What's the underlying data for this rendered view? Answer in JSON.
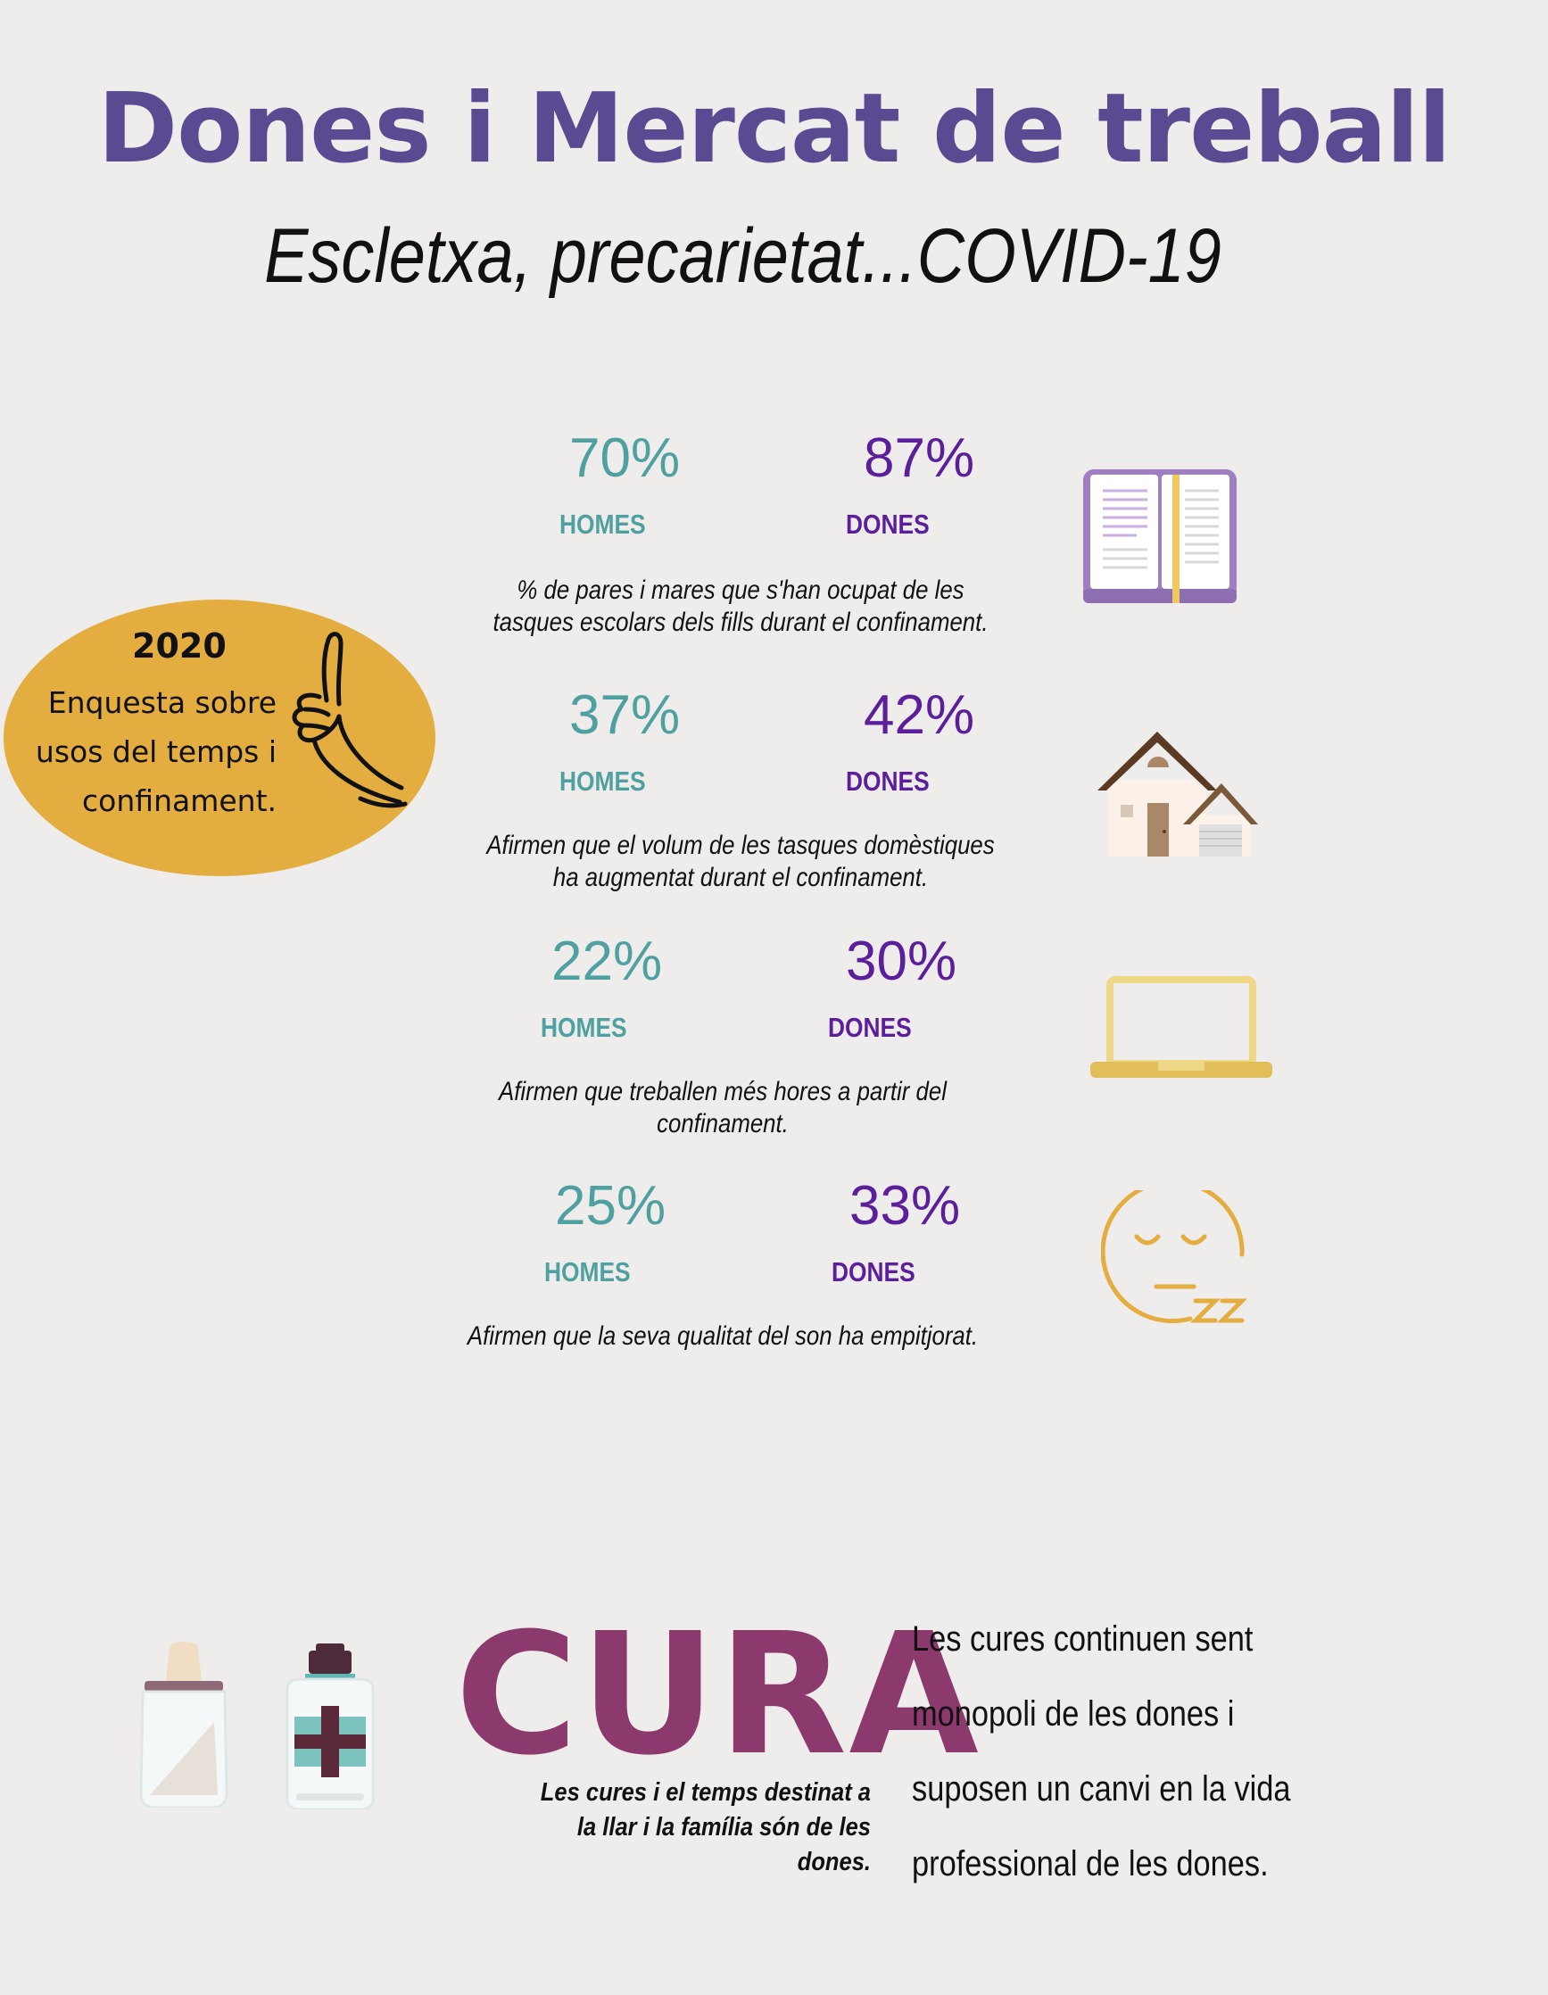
{
  "header": {
    "title": "Dones i Mercat de treball",
    "subtitle": "Escletxa, precarietat...COVID-19"
  },
  "survey_badge": {
    "year": "2020",
    "text": "Enquesta sobre usos del temps i confinament.",
    "line1": "Enquesta sobre",
    "line2": "usos del temps i",
    "line3": "confinament."
  },
  "stats": [
    {
      "homes_value": "70%",
      "homes_label": "HOMES",
      "dones_value": "87%",
      "dones_label": "DONES",
      "desc_line1": "% de pares i mares que s'han ocupat de les",
      "desc_line2": "tasques escolars dels fills durant el confinament.",
      "icon": "book-icon"
    },
    {
      "homes_value": "37%",
      "homes_label": "HOMES",
      "dones_value": "42%",
      "dones_label": "DONES",
      "desc_line1": "Afirmen que el volum de les tasques domèstiques",
      "desc_line2": "ha augmentat durant el confinament.",
      "icon": "house-icon"
    },
    {
      "homes_value": "22%",
      "homes_label": "HOMES",
      "dones_value": "30%",
      "dones_label": "DONES",
      "desc_line1": "Afirmen que treballen més hores a partir del",
      "desc_line2": "confinament.",
      "icon": "laptop-icon"
    },
    {
      "homes_value": "25%",
      "homes_label": "HOMES",
      "dones_value": "33%",
      "dones_label": "DONES",
      "desc_line1": "Afirmen que la seva qualitat del son ha empitjorat.",
      "desc_line2": "",
      "icon": "sleepy-face-icon"
    }
  ],
  "cura": {
    "heading": "CURA",
    "small_line1": "Les cures i el temps destinat a",
    "small_line2": "la llar i la família  són de les",
    "small_line3": "dones.",
    "text_line1": "Les cures continuen sent",
    "text_line2": "monopoli de les dones i",
    "text_line3": "suposen un canvi en la vida",
    "text_line4": "professional de les dones."
  },
  "colors": {
    "background": "#efedeb",
    "title": "#5a4a92",
    "homes": "#4fa0a0",
    "dones": "#5b1f9c",
    "badge": "#e3ad40",
    "cura": "#8c3a6e"
  }
}
